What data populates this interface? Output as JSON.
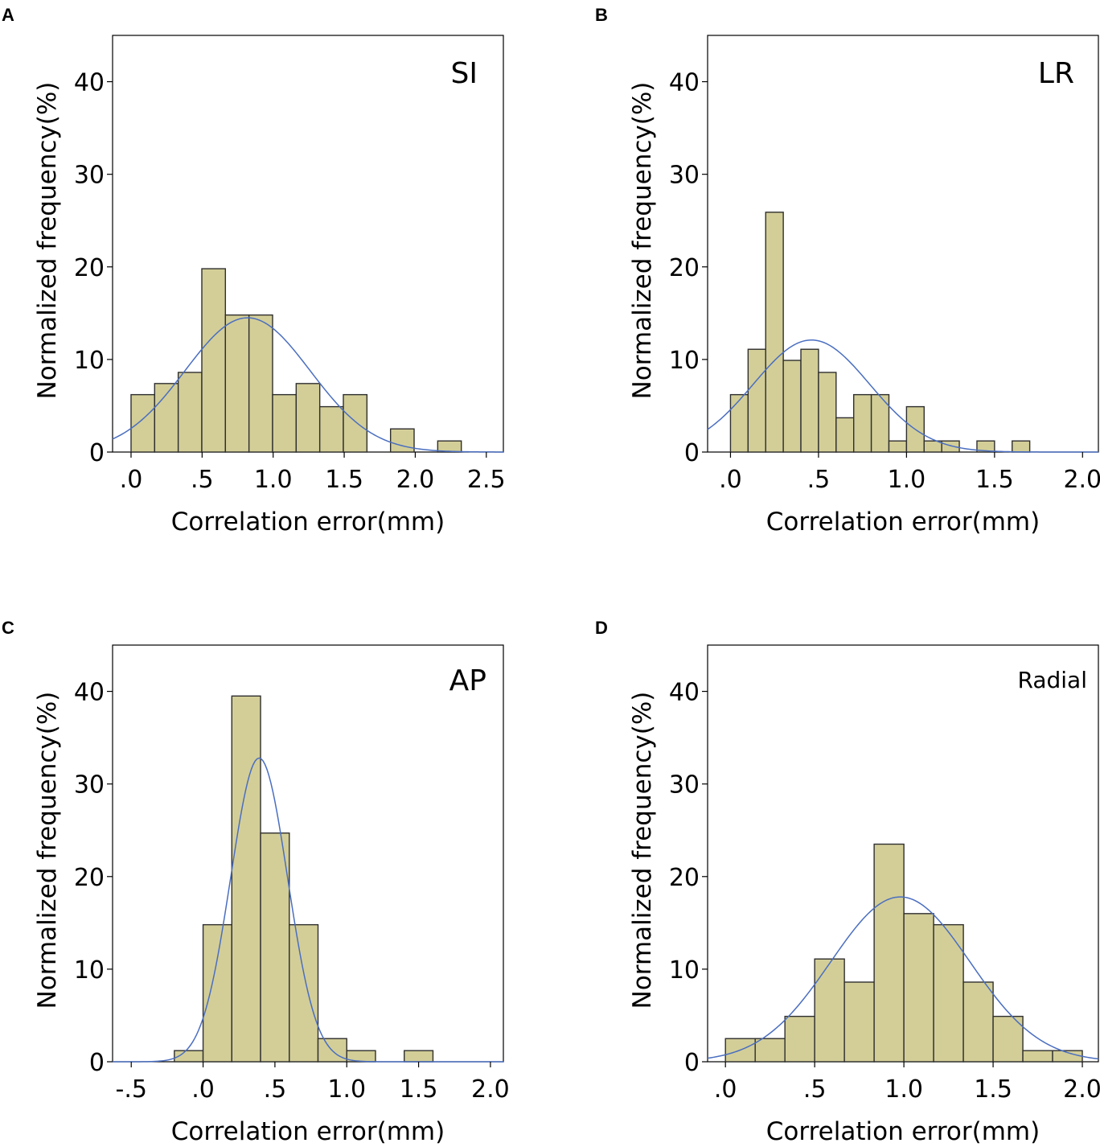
{
  "chart_data": [
    {
      "panel": "A",
      "type": "bar",
      "title": "SI",
      "xlabel": "Correlation error(mm)",
      "ylabel": "Normalized frequency(%)",
      "xlim": [
        -0.13,
        2.62
      ],
      "ylim": [
        0,
        45
      ],
      "xticks": [
        0,
        0.5,
        1.0,
        1.5,
        2.0,
        2.5
      ],
      "xtick_labels": [
        ".0",
        ".5",
        "1.0",
        "1.5",
        "2.0",
        "2.5"
      ],
      "yticks": [
        0,
        10,
        20,
        30,
        40
      ],
      "ytick_labels": [
        "0",
        "10",
        "20",
        "30",
        "40"
      ],
      "bin_width": 0.166,
      "bin_starts": [
        0.0,
        0.166,
        0.332,
        0.498,
        0.664,
        0.83,
        0.996,
        1.162,
        1.328,
        1.494,
        1.826,
        2.158
      ],
      "values": [
        6.2,
        7.4,
        8.6,
        19.8,
        14.8,
        14.8,
        6.2,
        7.4,
        4.9,
        6.2,
        2.5,
        1.2
      ],
      "normal_curve": {
        "mean": 0.82,
        "sd": 0.44,
        "peak": 14.5
      }
    },
    {
      "panel": "B",
      "type": "bar",
      "title": "LR",
      "xlabel": "Correlation error(mm)",
      "ylabel": "Normalized frequency(%)",
      "xlim": [
        -0.13,
        2.09
      ],
      "ylim": [
        0,
        45
      ],
      "xticks": [
        0,
        0.5,
        1.0,
        1.5,
        2.0
      ],
      "xtick_labels": [
        ".0",
        ".5",
        "1.0",
        "1.5",
        "2.0"
      ],
      "yticks": [
        0,
        10,
        20,
        30,
        40
      ],
      "ytick_labels": [
        "0",
        "10",
        "20",
        "30",
        "40"
      ],
      "bin_width": 0.1,
      "bin_starts": [
        0.0,
        0.1,
        0.2,
        0.3,
        0.4,
        0.5,
        0.6,
        0.7,
        0.8,
        0.9,
        1.0,
        1.1,
        1.2,
        1.4,
        1.6
      ],
      "values": [
        6.2,
        11.1,
        25.9,
        9.9,
        11.1,
        8.6,
        3.7,
        6.2,
        6.2,
        1.2,
        4.9,
        1.2,
        1.2,
        1.2,
        1.2
      ],
      "normal_curve": {
        "mean": 0.46,
        "sd": 0.33,
        "peak": 12.1
      }
    },
    {
      "panel": "C",
      "type": "bar",
      "title": "AP",
      "xlabel": "Correlation error(mm)",
      "ylabel": "Normalized frequency(%)",
      "xlim": [
        -0.63,
        2.09
      ],
      "ylim": [
        0,
        45
      ],
      "xticks": [
        -0.5,
        0,
        0.5,
        1.0,
        1.5,
        2.0
      ],
      "xtick_labels": [
        "-.5",
        ".0",
        ".5",
        "1.0",
        "1.5",
        "2.0"
      ],
      "yticks": [
        0,
        10,
        20,
        30,
        40
      ],
      "ytick_labels": [
        "0",
        "10",
        "20",
        "30",
        "40"
      ],
      "bin_width": 0.2,
      "bin_starts": [
        -0.2,
        0.0,
        0.2,
        0.4,
        0.6,
        0.8,
        1.0,
        1.4
      ],
      "values": [
        1.2,
        14.8,
        39.5,
        24.7,
        14.8,
        2.5,
        1.2,
        1.2
      ],
      "normal_curve": {
        "mean": 0.39,
        "sd": 0.198,
        "peak": 32.8
      }
    },
    {
      "panel": "D",
      "type": "bar",
      "title": "Radial",
      "xlabel": "Correlation error(mm)",
      "ylabel": "Normalized frequency(%)",
      "xlim": [
        -0.1,
        2.09
      ],
      "ylim": [
        0,
        45
      ],
      "xticks": [
        0,
        0.5,
        1.0,
        1.5,
        2.0
      ],
      "xtick_labels": [
        ".0",
        ".5",
        "1.0",
        "1.5",
        "2.0"
      ],
      "yticks": [
        0,
        10,
        20,
        30,
        40
      ],
      "ytick_labels": [
        "0",
        "10",
        "20",
        "30",
        "40"
      ],
      "bin_width": 0.1667,
      "bin_starts": [
        0.0,
        0.1667,
        0.3333,
        0.5,
        0.6667,
        0.8333,
        1.0,
        1.1667,
        1.3333,
        1.5,
        1.6667,
        1.8333
      ],
      "values": [
        2.5,
        2.5,
        4.9,
        11.1,
        8.6,
        23.5,
        16.0,
        14.8,
        8.6,
        4.9,
        1.2,
        1.2
      ],
      "normal_curve": {
        "mean": 0.98,
        "sd": 0.39,
        "peak": 17.8
      }
    }
  ]
}
